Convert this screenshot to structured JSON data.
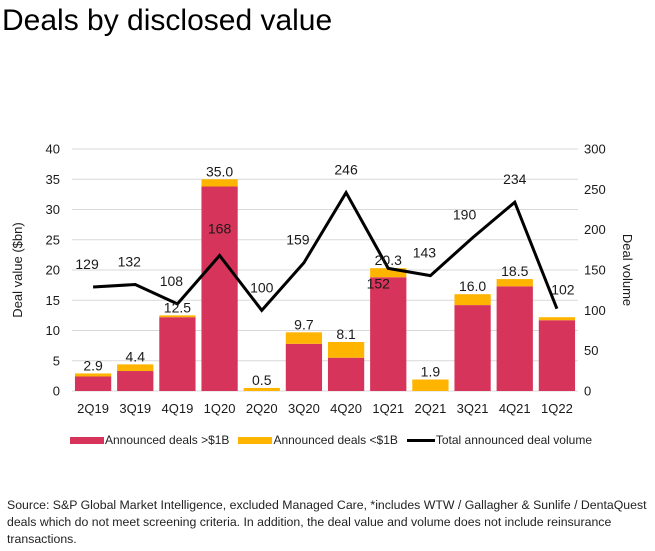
{
  "header": {
    "title": "Deals by disclosed value"
  },
  "colors": {
    "large_deals": "#d6345a",
    "small_deals": "#ffb400",
    "volume_line": "#000000",
    "gridline": "#d9d9d9"
  },
  "chart_data": {
    "type": "bar",
    "subtype": "stacked bar + line (dual axis)",
    "title": "Deals by disclosed value",
    "categories": [
      "2Q19",
      "3Q19",
      "4Q19",
      "1Q20",
      "2Q20",
      "3Q20",
      "4Q20",
      "1Q21",
      "2Q21",
      "3Q21",
      "4Q21",
      "1Q22"
    ],
    "series": [
      {
        "name": "Announced deals >$1B",
        "type": "bar",
        "axis": "left",
        "color": "#d6345a",
        "values": [
          2.4,
          3.3,
          12.2,
          33.8,
          0,
          7.8,
          5.5,
          18.8,
          0,
          14.2,
          17.3,
          11.7
        ]
      },
      {
        "name": "Announced deals <$1B",
        "type": "bar",
        "axis": "left",
        "color": "#ffb400",
        "values": [
          0.5,
          1.1,
          0.3,
          1.2,
          0.5,
          1.9,
          2.6,
          1.5,
          1.9,
          1.8,
          1.2,
          0.5
        ]
      },
      {
        "name": "Total announced deal volume",
        "type": "line",
        "axis": "right",
        "color": "#000000",
        "values": [
          129,
          132,
          108,
          168,
          100,
          159,
          246,
          152,
          143,
          190,
          234,
          102
        ]
      }
    ],
    "totals_labels": [
      "2.9",
      "4.4",
      "12.5",
      "35.0",
      "0.5",
      "9.7",
      "8.1",
      "20.3",
      "1.9",
      "16.0",
      "18.5",
      ""
    ],
    "volume_labels": [
      "129",
      "132",
      "108",
      "168",
      "100",
      "159",
      "246",
      "152",
      "143",
      "190",
      "234",
      "102"
    ],
    "ylabel": "Deal value ($bn)",
    "y2label": "Deal volume",
    "xlabel": "",
    "ylim": [
      0,
      40
    ],
    "y2lim": [
      0,
      300
    ],
    "yticks": [
      "0",
      "5",
      "10",
      "15",
      "20",
      "25",
      "30",
      "35",
      "40"
    ],
    "y2ticks": [
      "0",
      "50",
      "100",
      "150",
      "200",
      "250",
      "300"
    ],
    "grid": true,
    "legend_position": "bottom"
  },
  "legend": {
    "items": [
      {
        "label": "Announced deals >$1B"
      },
      {
        "label": "Announced deals <$1B"
      },
      {
        "label": "Total announced deal volume"
      }
    ]
  },
  "footer": {
    "source_note": "Source: S&P Global Market Intelligence, excluded Managed Care, *includes WTW / Gallagher & Sunlife / DentaQuest deals which do not meet screening criteria. In addition, the deal value and volume does not include reinsurance transactions."
  }
}
